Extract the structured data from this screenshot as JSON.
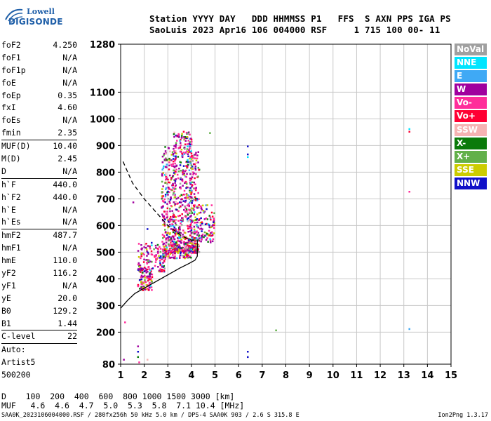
{
  "logo": {
    "top": "Lowell",
    "bottom": "DIGISONDE"
  },
  "header": {
    "line1": "Station YYYY DAY   DDD HHMMSS P1   FFS  S AXN PPS IGA PS",
    "line2": "SaoLuis 2023 Apr16 106 004000 RSF     1 715 100 00- 11"
  },
  "params": {
    "group1": [
      {
        "label": "foF2",
        "value": "4.250"
      },
      {
        "label": "foF1",
        "value": "N/A"
      },
      {
        "label": "foF1p",
        "value": "N/A"
      },
      {
        "label": "foE",
        "value": "N/A"
      },
      {
        "label": "foEp",
        "value": "0.35"
      },
      {
        "label": "fxI",
        "value": "4.60"
      },
      {
        "label": "foEs",
        "value": "N/A"
      },
      {
        "label": "fmin",
        "value": "2.35"
      }
    ],
    "group2": [
      {
        "label": "MUF(D)",
        "value": "10.40"
      },
      {
        "label": "M(D)",
        "value": "2.45"
      },
      {
        "label": "D",
        "value": "N/A"
      }
    ],
    "group3": [
      {
        "label": "h`F",
        "value": "440.0"
      },
      {
        "label": "h`F2",
        "value": "440.0"
      },
      {
        "label": "h`E",
        "value": "N/A"
      },
      {
        "label": "h`Es",
        "value": "N/A"
      }
    ],
    "group4": [
      {
        "label": "hmF2",
        "value": "487.7"
      },
      {
        "label": "hmF1",
        "value": "N/A"
      },
      {
        "label": "hmE",
        "value": "110.0"
      },
      {
        "label": "yF2",
        "value": "116.2"
      },
      {
        "label": "yF1",
        "value": "N/A"
      },
      {
        "label": "yE",
        "value": "20.0"
      },
      {
        "label": "B0",
        "value": "129.2"
      },
      {
        "label": "B1",
        "value": "1.44"
      }
    ],
    "group5": [
      {
        "label": "C-level",
        "value": "22"
      }
    ],
    "auto": [
      "Auto:",
      "Artist5",
      "500200"
    ]
  },
  "legend": [
    {
      "label": "NoVal",
      "color": "#a0a0a0"
    },
    {
      "label": "NNE",
      "color": "#00e5ff"
    },
    {
      "label": "E",
      "color": "#3fa9f5"
    },
    {
      "label": "W",
      "color": "#a0009e"
    },
    {
      "label": "Vo-",
      "color": "#ff2d9a"
    },
    {
      "label": "Vo+",
      "color": "#ff0033"
    },
    {
      "label": "SSW",
      "color": "#f6b3b3"
    },
    {
      "label": "X-",
      "color": "#0a7a0a"
    },
    {
      "label": "X+",
      "color": "#62b04a"
    },
    {
      "label": "SSE",
      "color": "#cccc00"
    },
    {
      "label": "NNW",
      "color": "#1010c8"
    }
  ],
  "footer": {
    "distance_line": "D    100  200  400  600  800 1000 1500 3000 [km]",
    "muf_line": "MUF   4.6  4.6  4.7  5.0  5.3  5.8  7.1 10.4 [MHz]",
    "bottom_left": "SAA0K_2023106004000.RSF / 280fx256h 50 kHz 5.0 km / DPS-4 SAA0K 903 / 2.6 S 315.8 E",
    "bottom_right": "Ion2Png 1.3.17"
  },
  "chart_data": {
    "type": "scatter",
    "xlim": [
      1,
      15
    ],
    "ylim": [
      80,
      1280
    ],
    "x_ticks": [
      1,
      2,
      3,
      4,
      5,
      6,
      7,
      8,
      9,
      10,
      11,
      12,
      13,
      14,
      15
    ],
    "y_ticks": [
      80,
      200,
      300,
      400,
      500,
      600,
      700,
      800,
      900,
      1000,
      1100,
      1280
    ],
    "grid": true,
    "profile_solid": {
      "x": [
        1.0,
        1.3,
        1.6,
        2.0,
        2.5,
        3.0,
        3.5,
        3.9,
        4.15,
        4.25,
        4.25
      ],
      "y": [
        290,
        320,
        345,
        365,
        390,
        415,
        440,
        458,
        470,
        485,
        545
      ]
    },
    "profile_dashed": {
      "x": [
        1.1,
        1.5,
        2.0,
        2.5,
        3.0,
        3.6,
        4.0,
        4.25
      ],
      "y": [
        840,
        760,
        700,
        650,
        600,
        560,
        545,
        545
      ]
    },
    "echo_clusters": [
      {
        "x": [
          1.7,
          2.3
        ],
        "y": [
          360,
          440
        ],
        "n": 90
      },
      {
        "x": [
          1.7,
          2.9
        ],
        "y": [
          430,
          540
        ],
        "n": 140
      },
      {
        "x": [
          2.7,
          3.3
        ],
        "y": [
          480,
          900
        ],
        "n": 260
      },
      {
        "x": [
          3.2,
          4.0
        ],
        "y": [
          480,
          960
        ],
        "n": 420
      },
      {
        "x": [
          3.9,
          4.3
        ],
        "y": [
          500,
          880
        ],
        "n": 180
      },
      {
        "x": [
          4.3,
          4.95
        ],
        "y": [
          540,
          680
        ],
        "n": 90
      },
      {
        "x": [
          2.8,
          4.3
        ],
        "y": [
          500,
          560
        ],
        "n": 170
      }
    ],
    "isolated_points": [
      {
        "x": 1.7,
        "y": 150,
        "c": 3
      },
      {
        "x": 1.7,
        "y": 130,
        "c": 10
      },
      {
        "x": 1.7,
        "y": 110,
        "c": 7
      },
      {
        "x": 1.75,
        "y": 90,
        "c": 4
      },
      {
        "x": 1.1,
        "y": 100,
        "c": 3
      },
      {
        "x": 2.1,
        "y": 100,
        "c": 6
      },
      {
        "x": 1.5,
        "y": 690,
        "c": 3
      },
      {
        "x": 6.35,
        "y": 900,
        "c": 10
      },
      {
        "x": 6.35,
        "y": 870,
        "c": 10
      },
      {
        "x": 6.35,
        "y": 860,
        "c": 1
      },
      {
        "x": 6.35,
        "y": 130,
        "c": 10
      },
      {
        "x": 6.35,
        "y": 110,
        "c": 10
      },
      {
        "x": 7.55,
        "y": 210,
        "c": 8
      },
      {
        "x": 13.2,
        "y": 965,
        "c": 1
      },
      {
        "x": 13.2,
        "y": 955,
        "c": 5
      },
      {
        "x": 13.2,
        "y": 730,
        "c": 4
      },
      {
        "x": 13.2,
        "y": 215,
        "c": 2
      },
      {
        "x": 1.15,
        "y": 240,
        "c": 4
      },
      {
        "x": 2.1,
        "y": 590,
        "c": 10
      },
      {
        "x": 4.75,
        "y": 950,
        "c": 8
      }
    ]
  }
}
